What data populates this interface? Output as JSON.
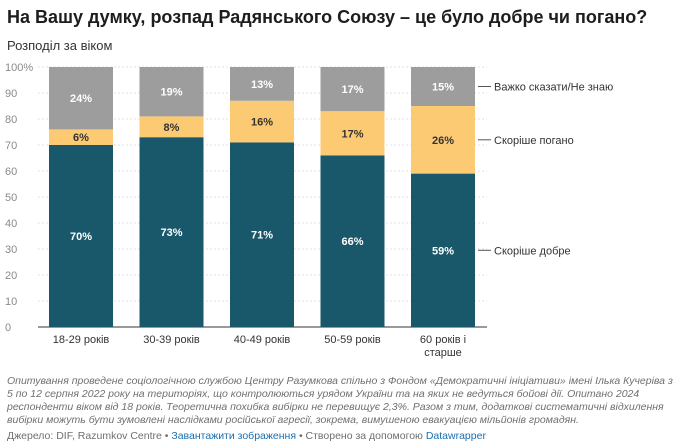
{
  "header": {
    "title": "На Вашу думку, розпад Радянського Союзу – це було добре чи погано?",
    "subtitle": "Розподіл за віком"
  },
  "chart_data": {
    "type": "bar",
    "stacked": true,
    "title": "На Вашу думку, розпад Радянського Союзу – це було добре чи погано?",
    "subtitle": "Розподіл за віком",
    "categories": [
      [
        "18-29 років"
      ],
      [
        "30-39 років"
      ],
      [
        "40-49 років"
      ],
      [
        "50-59 років"
      ],
      [
        "60 років і",
        "старше"
      ]
    ],
    "series": [
      {
        "name": "Скоріше добре",
        "color": "#19586a",
        "label_color": "#ffffff",
        "values": [
          70,
          73,
          71,
          66,
          59
        ]
      },
      {
        "name": "Скоріше погано",
        "color": "#fdca74",
        "label_color": "#333333",
        "values": [
          6,
          8,
          16,
          17,
          26
        ]
      },
      {
        "name": "Важко сказати/Не знаю",
        "color": "#9d9d9d",
        "label_color": "#ffffff",
        "values": [
          24,
          19,
          13,
          17,
          15
        ]
      }
    ],
    "value_suffix": "%",
    "y_ticks": [
      0,
      10,
      20,
      30,
      40,
      50,
      60,
      70,
      80,
      90,
      100
    ],
    "y_tick_labels": [
      "0",
      "10",
      "20",
      "30",
      "40",
      "50",
      "60",
      "70",
      "80",
      "90",
      "100%"
    ],
    "ylim": [
      0,
      100
    ],
    "grid": true,
    "legend": "right, inline labels"
  },
  "notes": "Опитування проведене соціологічною службою Центру Разумкова спільно з Фондом «Демократичні ініціативи» імені Ілька Кучеріва з 5 по 12 серпня 2022 року на територіях, що контролюються урядом України та на яких не ведуться бойові дії. Опитано 2024 респонденти віком від 18 років. Теоретична похибка вибірки не перевищує 2,3%. Разом з тим, додаткові систематичні відхилення вибірки можуть бути зумовлені наслідками російської агресії, зокрема, вимушеною евакуацією мільйонів громадян.",
  "footer": {
    "source": "Джерело: DIF, Razumkov Centre",
    "sep1": " • ",
    "download": "Завантажити зображення",
    "sep2": " • Створено за допомогою ",
    "tool": "Datawrapper"
  }
}
